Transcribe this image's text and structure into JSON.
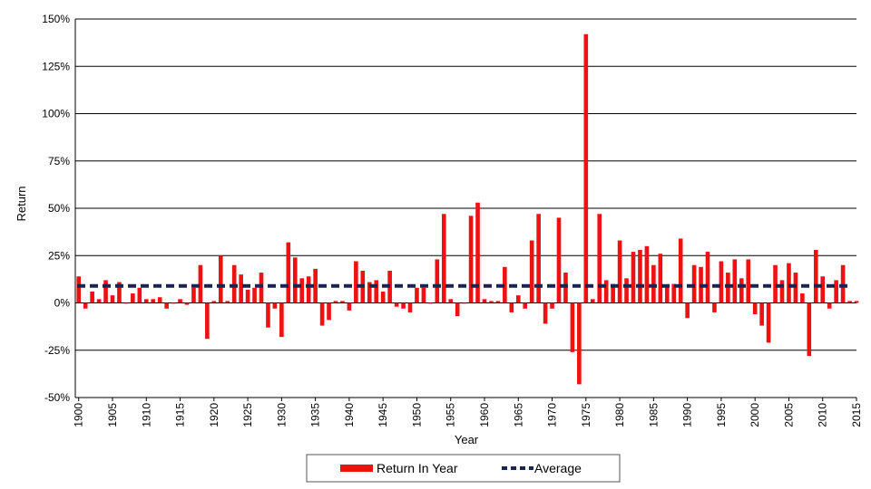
{
  "chart_data": {
    "type": "bar",
    "xlabel": "Year",
    "ylabel": "Return",
    "ylim": [
      -50,
      150
    ],
    "y_ticks": [
      "-50%",
      "-25%",
      "0%",
      "25%",
      "50%",
      "75%",
      "100%",
      "125%",
      "150%"
    ],
    "y_tick_values": [
      -50,
      -25,
      0,
      25,
      50,
      75,
      100,
      125,
      150
    ],
    "x_ticks": [
      "1900",
      "1905",
      "1910",
      "1915",
      "1920",
      "1925",
      "1930",
      "1935",
      "1940",
      "1945",
      "1950",
      "1955",
      "1960",
      "1965",
      "1970",
      "1975",
      "1980",
      "1985",
      "1990",
      "1995",
      "2000",
      "2005",
      "2010",
      "2015"
    ],
    "x_tick_values": [
      1900,
      1905,
      1910,
      1915,
      1920,
      1925,
      1930,
      1935,
      1940,
      1945,
      1950,
      1955,
      1960,
      1965,
      1970,
      1975,
      1980,
      1985,
      1990,
      1995,
      2000,
      2005,
      2010,
      2015
    ],
    "grid": "horizontal",
    "legend_placement": "bottom-center",
    "bar_color": "#ee1111",
    "average_color": "#1a2450",
    "legend": [
      "Return In Year",
      "Average"
    ],
    "x": [
      1900,
      1901,
      1902,
      1903,
      1904,
      1905,
      1906,
      1907,
      1908,
      1909,
      1910,
      1911,
      1912,
      1913,
      1914,
      1915,
      1916,
      1917,
      1918,
      1919,
      1920,
      1921,
      1922,
      1923,
      1924,
      1925,
      1926,
      1927,
      1928,
      1929,
      1930,
      1931,
      1932,
      1933,
      1934,
      1935,
      1936,
      1937,
      1938,
      1939,
      1940,
      1941,
      1942,
      1943,
      1944,
      1945,
      1946,
      1947,
      1948,
      1949,
      1950,
      1951,
      1952,
      1953,
      1954,
      1955,
      1956,
      1957,
      1958,
      1959,
      1960,
      1961,
      1962,
      1963,
      1964,
      1965,
      1966,
      1967,
      1968,
      1969,
      1970,
      1971,
      1972,
      1973,
      1974,
      1975,
      1976,
      1977,
      1978,
      1979,
      1980,
      1981,
      1982,
      1983,
      1984,
      1985,
      1986,
      1987,
      1988,
      1989,
      1990,
      1991,
      1992,
      1993,
      1994,
      1995,
      1996,
      1997,
      1998,
      1999,
      2000,
      2001,
      2002,
      2003,
      2004,
      2005,
      2006,
      2007,
      2008,
      2009,
      2010,
      2011,
      2012,
      2013,
      2014,
      2015
    ],
    "series": [
      {
        "name": "Return In Year",
        "values": [
          14,
          -3,
          6,
          2,
          12,
          4,
          11,
          0,
          5,
          8,
          2,
          2,
          3,
          -3,
          0,
          2,
          -1,
          8,
          20,
          -19,
          1,
          25,
          1,
          20,
          15,
          7,
          8,
          16,
          -13,
          -3,
          -18,
          32,
          24,
          13,
          14,
          18,
          -12,
          -9,
          1,
          1,
          -4,
          22,
          17,
          11,
          12,
          6,
          17,
          -2,
          -3,
          -5,
          8,
          8,
          0,
          23,
          47,
          2,
          -7,
          0,
          46,
          53,
          2,
          1,
          1,
          19,
          -5,
          4,
          -3,
          33,
          47,
          -11,
          -3,
          45,
          16,
          -26,
          -43,
          142,
          2,
          47,
          12,
          10,
          33,
          13,
          27,
          28,
          30,
          20,
          26,
          9,
          10,
          34,
          -8,
          20,
          19,
          27,
          -5,
          22,
          16,
          23,
          13,
          23,
          -6,
          -12,
          -21,
          20,
          12,
          21,
          16,
          5,
          -28,
          28,
          14,
          -3,
          12,
          20,
          1,
          1
        ]
      },
      {
        "name": "Average",
        "value": 9
      }
    ]
  }
}
